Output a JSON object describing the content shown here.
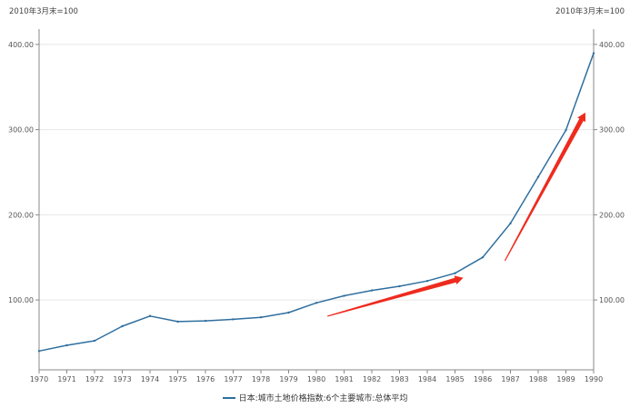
{
  "chart_data": {
    "type": "line",
    "y_unit_label_left": "2010年3月末=100",
    "y_unit_label_right": "2010年3月末=100",
    "x": [
      "1970",
      "1971",
      "1972",
      "1973",
      "1974",
      "1975",
      "1976",
      "1977",
      "1978",
      "1979",
      "1980",
      "1981",
      "1982",
      "1983",
      "1984",
      "1985",
      "1986",
      "1987",
      "1988",
      "1989",
      "1990"
    ],
    "series": [
      {
        "name": "日本:城市土地价格指数:6个主要城市:总体平均",
        "color": "#2f6f9f",
        "values": [
          40.1,
          46.8,
          52.1,
          69.2,
          81.2,
          74.6,
          75.5,
          77.3,
          79.7,
          85.2,
          96.6,
          104.9,
          111.2,
          116.1,
          122.3,
          131.4,
          150.1,
          189.9,
          244.5,
          299.4,
          389.7
        ]
      }
    ],
    "ylim": [
      18,
      418
    ],
    "yticks": [
      100,
      200,
      300,
      400
    ],
    "ytick_labels": [
      "100.00",
      "200.00",
      "300.00",
      "400.00"
    ],
    "grid": "horizontal",
    "legend_position": "bottom-center",
    "annotations": [
      {
        "type": "arrow",
        "color": "#ee2b1e",
        "from": {
          "x": 1980.4,
          "y": 81
        },
        "to": {
          "x": 1985.3,
          "y": 126
        }
      },
      {
        "type": "arrow",
        "color": "#ee2b1e",
        "from": {
          "x": 1986.8,
          "y": 146
        },
        "to": {
          "x": 1989.7,
          "y": 320
        }
      }
    ]
  }
}
